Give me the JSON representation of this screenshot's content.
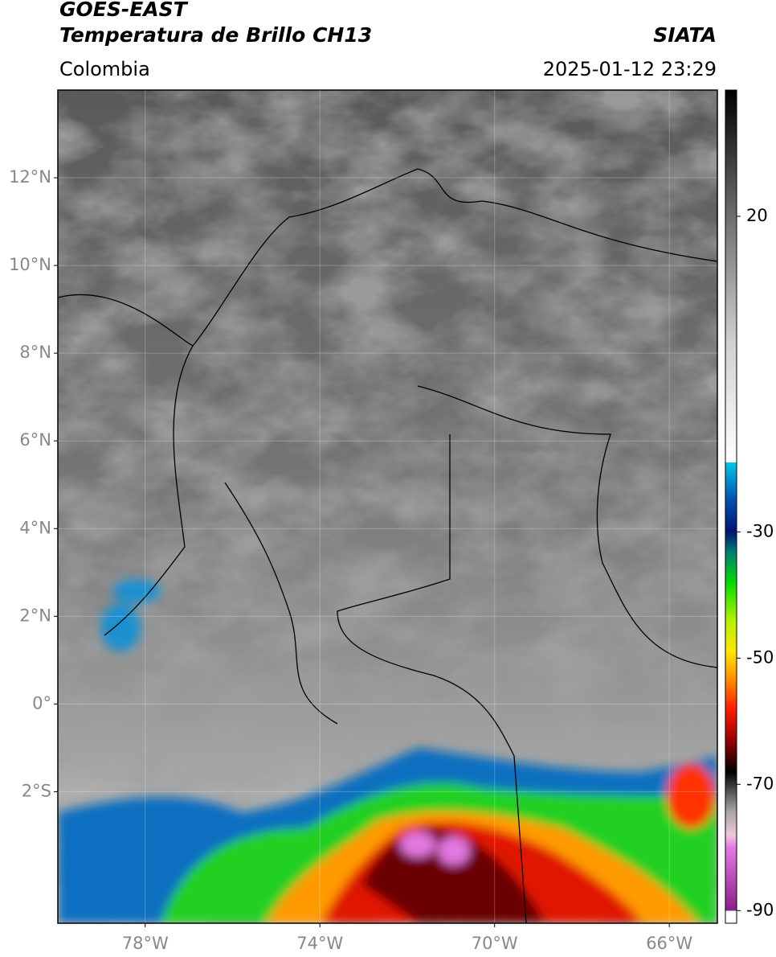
{
  "header": {
    "title": "GOES-EAST",
    "subtitle": "Temperatura de Brillo CH13",
    "source": "SIATA",
    "region": "Colombia",
    "timestamp": "2025-01-12 23:29"
  },
  "map": {
    "xlim": [
      -80,
      -64.9
    ],
    "ylim": [
      -5,
      14
    ],
    "xticks": [
      {
        "value": -78,
        "label": "78°W"
      },
      {
        "value": -74,
        "label": "74°W"
      },
      {
        "value": -70,
        "label": "70°W"
      },
      {
        "value": -66,
        "label": "66°W"
      }
    ],
    "yticks": [
      {
        "value": 12,
        "label": "12°N"
      },
      {
        "value": 10,
        "label": "10°N"
      },
      {
        "value": 8,
        "label": "8°N"
      },
      {
        "value": 6,
        "label": "6°N"
      },
      {
        "value": 4,
        "label": "4°N"
      },
      {
        "value": 2,
        "label": "2°N"
      },
      {
        "value": 0,
        "label": "0°"
      },
      {
        "value": -2,
        "label": "2°S"
      }
    ],
    "grid": true
  },
  "colorbar": {
    "lim": [
      -92,
      40
    ],
    "ticks": [
      20,
      -30,
      -50,
      -70,
      -90
    ],
    "stops": [
      {
        "value": 40,
        "color": "#000000"
      },
      {
        "value": 20,
        "color": "#6e6e6e"
      },
      {
        "value": 0,
        "color": "#d0d0d0"
      },
      {
        "value": -19,
        "color": "#ffffff"
      },
      {
        "value": -19,
        "color": "#00c8e6"
      },
      {
        "value": -25,
        "color": "#0050b4"
      },
      {
        "value": -30,
        "color": "#001470"
      },
      {
        "value": -33,
        "color": "#007878"
      },
      {
        "value": -38,
        "color": "#00dc00"
      },
      {
        "value": -44,
        "color": "#b4f000"
      },
      {
        "value": -49,
        "color": "#ffe600"
      },
      {
        "value": -53,
        "color": "#ff9600"
      },
      {
        "value": -58,
        "color": "#ff1e00"
      },
      {
        "value": -63,
        "color": "#9b0000"
      },
      {
        "value": -68,
        "color": "#000000"
      },
      {
        "value": -74,
        "color": "#a0a0a0"
      },
      {
        "value": -78,
        "color": "#f0c8dc"
      },
      {
        "value": -80,
        "color": "#e678e6"
      },
      {
        "value": -90,
        "color": "#8c1e8c"
      },
      {
        "value": -90,
        "color": "#ffffff"
      }
    ]
  }
}
